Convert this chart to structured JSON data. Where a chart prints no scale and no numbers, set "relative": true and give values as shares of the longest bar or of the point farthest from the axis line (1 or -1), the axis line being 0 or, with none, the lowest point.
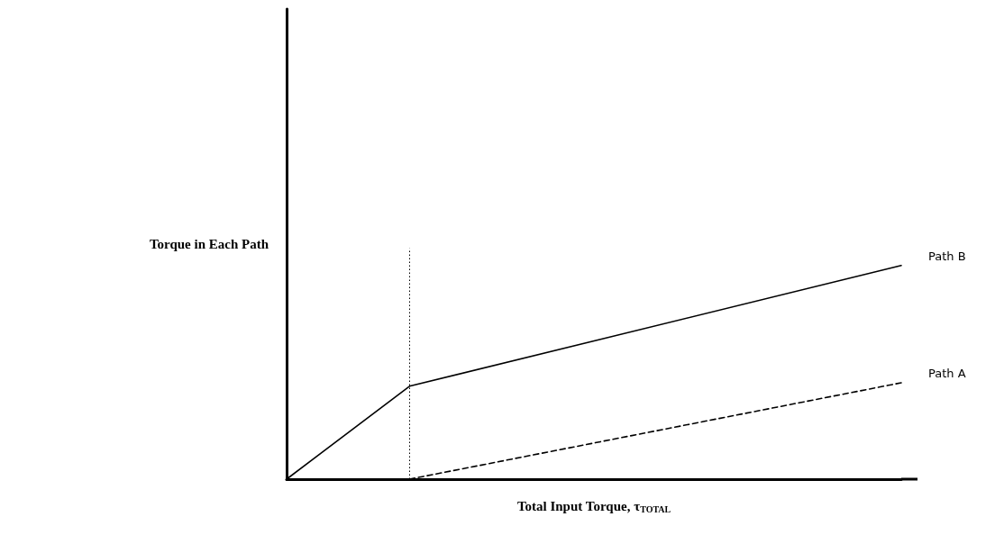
{
  "chart_data": {
    "type": "line",
    "relative": true,
    "xlabel": "Total Input Torque, τ$_{TOTAL}$",
    "ylabel": "Torque in Each Path",
    "grid": false,
    "legend": false,
    "marker": "none",
    "categories": [
      null,
      null,
      null,
      null,
      null,
      null
    ],
    "series": [
      {
        "name": "Path B",
        "color": "#000000",
        "line_style": "solid",
        "values": [
          0,
          0.435,
          null,
          null,
          null,
          1
        ]
      },
      {
        "name": "Path A",
        "color": "#000000",
        "line_style": "dashed",
        "values": [
          null,
          0,
          null,
          null,
          null,
          0.451
        ]
      }
    ]
  }
}
